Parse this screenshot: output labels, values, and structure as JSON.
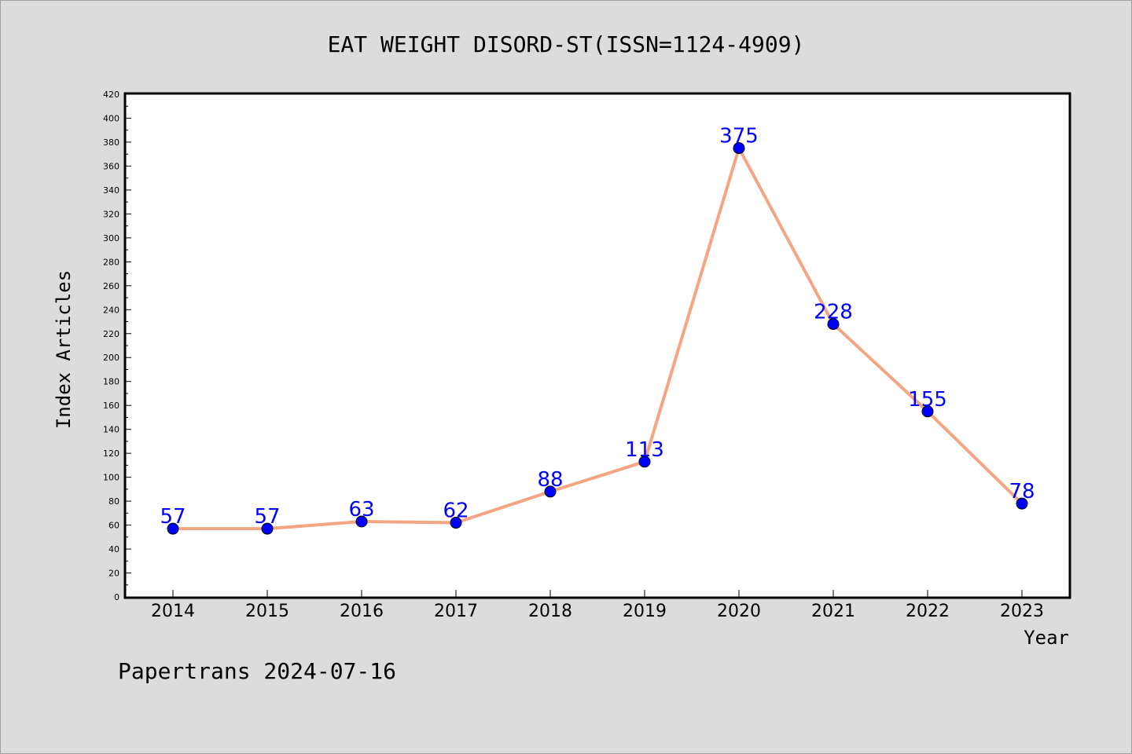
{
  "chart_data": {
    "type": "line",
    "title": "EAT WEIGHT DISORD-ST(ISSN=1124-4909)",
    "xlabel": "Year",
    "ylabel": "Index Articles",
    "categories": [
      "2014",
      "2015",
      "2016",
      "2017",
      "2018",
      "2019",
      "2020",
      "2021",
      "2022",
      "2023"
    ],
    "series": [
      {
        "values": [
          57,
          57,
          63,
          62,
          88,
          113,
          375,
          228,
          155,
          78
        ]
      }
    ],
    "ylim": [
      0,
      420
    ],
    "y_ticks": [
      0,
      20,
      40,
      60,
      80,
      100,
      120,
      140,
      160,
      180,
      200,
      220,
      240,
      260,
      280,
      300,
      320,
      340,
      360,
      380,
      400,
      420
    ],
    "grid": false,
    "data_labels": true,
    "colors": {
      "line": "#f4a582",
      "marker": "#0000ff",
      "label": "#0000ff",
      "background": "#dcdcdc",
      "plot_area": "#ffffff"
    }
  },
  "footer": "Papertrans 2024-07-16"
}
